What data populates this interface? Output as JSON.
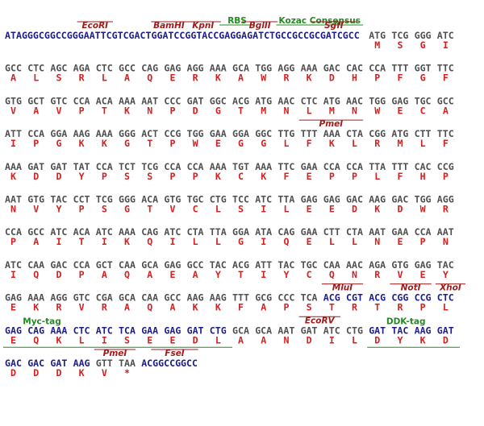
{
  "amino_color": "#d42020",
  "rows": [
    {
      "segments": [
        {
          "color": "#1c1c8c",
          "text": "ATAGGGCGGCCGGGAATTCGTCGACTGGATCCGGTACCGAGGAGATCTGCCGCCGCGATCGCC"
        },
        {
          "color": "#505050",
          "codons": [
            "ATG",
            "TCG",
            "GGG",
            "ATC"
          ],
          "amino_acids": [
            "M",
            "S",
            "G",
            "I"
          ]
        }
      ],
      "annotations": [
        {
          "label": "EcoRI",
          "color": "#a01c1c"
        },
        {
          "label": "BamHI",
          "color": "#a01c1c"
        },
        {
          "label": "KpnI",
          "color": "#a01c1c"
        },
        {
          "label": "RBS",
          "color": "#228b22"
        },
        {
          "label": "BglII",
          "color": "#a01c1c"
        },
        {
          "label": "Kozac Consensus",
          "color": "#228b22"
        },
        {
          "label": "SgfI",
          "color": "#a01c1c"
        }
      ]
    },
    {
      "segments": [
        {
          "color": "#505050",
          "codons": [
            "GCC",
            "CTC",
            "AGC",
            "AGA",
            "CTC",
            "GCC",
            "CAG",
            "GAG",
            "AGG",
            "AAA",
            "GCA",
            "TGG",
            "AGG",
            "AAA",
            "GAC",
            "CAC",
            "CCA",
            "TTT",
            "GGT",
            "TTC"
          ],
          "amino_acids": [
            "A",
            "L",
            "S",
            "R",
            "L",
            "A",
            "Q",
            "E",
            "R",
            "K",
            "A",
            "W",
            "R",
            "K",
            "D",
            "H",
            "P",
            "F",
            "G",
            "F"
          ]
        }
      ],
      "annotations": []
    },
    {
      "segments": [
        {
          "color": "#505050",
          "codons": [
            "GTG",
            "GCT",
            "GTC",
            "CCA",
            "ACA",
            "AAA",
            "AAT",
            "CCC",
            "GAT",
            "GGC",
            "ACG",
            "ATG",
            "AAC",
            "CTC",
            "ATG",
            "AAC",
            "TGG",
            "GAG",
            "TGC",
            "GCC"
          ],
          "amino_acids": [
            "V",
            "A",
            "V",
            "P",
            "T",
            "K",
            "N",
            "P",
            "D",
            "G",
            "T",
            "M",
            "N",
            "L",
            "M",
            "N",
            "W",
            "E",
            "C",
            "A"
          ]
        }
      ],
      "annotations": []
    },
    {
      "segments": [
        {
          "color": "#505050",
          "codons": [
            "ATT",
            "CCA",
            "GGA",
            "AAG",
            "AAA",
            "GGG",
            "ACT",
            "CCG",
            "TGG",
            "GAA",
            "GGA",
            "GGC",
            "TTG",
            "TTT",
            "AAA",
            "CTA",
            "CGG",
            "ATG",
            "CTT",
            "TTC"
          ],
          "amino_acids": [
            "I",
            "P",
            "G",
            "K",
            "K",
            "G",
            "T",
            "P",
            "W",
            "E",
            "G",
            "G",
            "L",
            "F",
            "K",
            "L",
            "R",
            "M",
            "L",
            "F"
          ]
        }
      ],
      "annotations": [
        {
          "label": "PmeI",
          "color": "#a01c1c"
        }
      ]
    },
    {
      "segments": [
        {
          "color": "#505050",
          "codons": [
            "AAA",
            "GAT",
            "GAT",
            "TAT",
            "CCA",
            "TCT",
            "TCG",
            "CCA",
            "CCA",
            "AAA",
            "TGT",
            "AAA",
            "TTC",
            "GAA",
            "CCA",
            "CCA",
            "TTA",
            "TTT",
            "CAC",
            "CCG"
          ],
          "amino_acids": [
            "K",
            "D",
            "D",
            "Y",
            "P",
            "S",
            "S",
            "P",
            "P",
            "K",
            "C",
            "K",
            "F",
            "E",
            "P",
            "P",
            "L",
            "F",
            "H",
            "P"
          ]
        }
      ],
      "annotations": []
    },
    {
      "segments": [
        {
          "color": "#505050",
          "codons": [
            "AAT",
            "GTG",
            "TAC",
            "CCT",
            "TCG",
            "GGG",
            "ACA",
            "GTG",
            "TGC",
            "CTG",
            "TCC",
            "ATC",
            "TTA",
            "GAG",
            "GAG",
            "GAC",
            "AAG",
            "GAC",
            "TGG",
            "AGG"
          ],
          "amino_acids": [
            "N",
            "V",
            "Y",
            "P",
            "S",
            "G",
            "T",
            "V",
            "C",
            "L",
            "S",
            "I",
            "L",
            "E",
            "E",
            "D",
            "K",
            "D",
            "W",
            "R"
          ]
        }
      ],
      "annotations": []
    },
    {
      "segments": [
        {
          "color": "#505050",
          "codons": [
            "CCA",
            "GCC",
            "ATC",
            "ACA",
            "ATC",
            "AAA",
            "CAG",
            "ATC",
            "CTA",
            "TTA",
            "GGA",
            "ATA",
            "CAG",
            "GAA",
            "CTT",
            "CTA",
            "AAT",
            "GAA",
            "CCA",
            "AAT"
          ],
          "amino_acids": [
            "P",
            "A",
            "I",
            "T",
            "I",
            "K",
            "Q",
            "I",
            "L",
            "L",
            "G",
            "I",
            "Q",
            "E",
            "L",
            "L",
            "N",
            "E",
            "P",
            "N"
          ]
        }
      ],
      "annotations": []
    },
    {
      "segments": [
        {
          "color": "#505050",
          "codons": [
            "ATC",
            "CAA",
            "GAC",
            "CCA",
            "GCT",
            "CAA",
            "GCA",
            "GAG",
            "GCC",
            "TAC",
            "ACG",
            "ATT",
            "TAC",
            "TGC",
            "CAA",
            "AAC",
            "AGA",
            "GTG",
            "GAG",
            "TAC"
          ],
          "amino_acids": [
            "I",
            "Q",
            "D",
            "P",
            "A",
            "Q",
            "A",
            "E",
            "A",
            "Y",
            "T",
            "I",
            "Y",
            "C",
            "Q",
            "N",
            "R",
            "V",
            "E",
            "Y"
          ]
        }
      ],
      "annotations": []
    },
    {
      "segments": [
        {
          "color": "#505050",
          "codons": [
            "GAG",
            "AAA",
            "AGG",
            "GTC",
            "CGA",
            "GCA",
            "CAA",
            "GCC",
            "AAG",
            "AAG",
            "TTT",
            "GCG",
            "CCC",
            "TCA"
          ],
          "amino_acids": [
            "E",
            "K",
            "R",
            "V",
            "R",
            "A",
            "Q",
            "A",
            "K",
            "K",
            "F",
            "A",
            "P",
            "S"
          ]
        },
        {
          "color": "#1c1c8c",
          "codons": [
            "ACG",
            "CGT",
            "ACG",
            "CGG",
            "CCG",
            "CTC"
          ],
          "amino_acids": [
            "T",
            "R",
            "T",
            "R",
            "P",
            "L"
          ]
        }
      ],
      "annotations": [
        {
          "label": "MluI",
          "color": "#a01c1c"
        },
        {
          "label": "NotI",
          "color": "#a01c1c"
        },
        {
          "label": "XhoI",
          "color": "#a01c1c"
        }
      ]
    },
    {
      "segments": [
        {
          "color": "#1c1c8c",
          "codons": [
            "GAG",
            "CAG",
            "AAA",
            "CTC",
            "ATC",
            "TCA",
            "GAA",
            "GAG",
            "GAT",
            "CTG"
          ],
          "amino_acids": [
            "E",
            "Q",
            "K",
            "L",
            "I",
            "S",
            "E",
            "E",
            "D",
            "L"
          ]
        },
        {
          "color": "#505050",
          "codons": [
            "GCA",
            "GCA",
            "AAT",
            "GAT",
            "ATC",
            "CTG"
          ],
          "amino_acids": [
            "A",
            "A",
            "N",
            "D",
            "I",
            "L"
          ]
        },
        {
          "color": "#1c1c8c",
          "codons": [
            "GAT",
            "TAC",
            "AAG",
            "GAT"
          ],
          "amino_acids": [
            "D",
            "Y",
            "K",
            "D"
          ]
        }
      ],
      "annotations": [
        {
          "label": "Myc-tag",
          "color": "#228b22"
        },
        {
          "label": "EcoRV",
          "color": "#a01c1c"
        },
        {
          "label": "DDK-tag",
          "color": "#228b22"
        }
      ]
    },
    {
      "segments": [
        {
          "color": "#1c1c8c",
          "codons": [
            "GAC",
            "GAC",
            "GAT",
            "AAG"
          ],
          "amino_acids": [
            "D",
            "D",
            "D",
            "K"
          ]
        },
        {
          "color": "#505050",
          "codons": [
            "GTT",
            "TAA"
          ],
          "amino_acids": [
            "V",
            "*"
          ]
        },
        {
          "color": "#1c1c8c",
          "text": "ACGGCCGGCC"
        }
      ],
      "annotations": [
        {
          "label": "PmeI",
          "color": "#a01c1c"
        },
        {
          "label": "FseI",
          "color": "#a01c1c"
        }
      ]
    }
  ]
}
